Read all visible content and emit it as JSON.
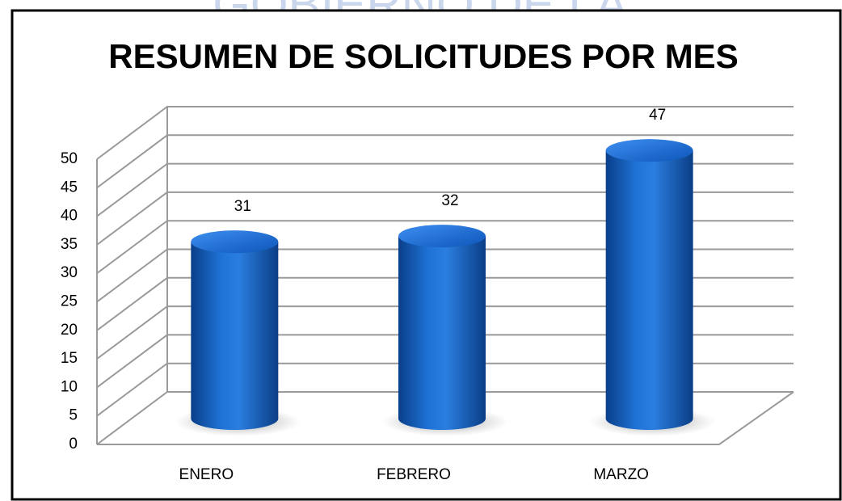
{
  "watermark": "GOBIERNO DE LA",
  "chart_data": {
    "type": "bar",
    "title": "RESUMEN DE SOLICITUDES POR MES",
    "categories": [
      "ENERO",
      "FEBRERO",
      "MARZO"
    ],
    "values": [
      31,
      32,
      47
    ],
    "color": "#1565c0",
    "ylim": [
      0,
      50
    ],
    "yticks": [
      0,
      5,
      10,
      15,
      20,
      25,
      30,
      35,
      40,
      45,
      50
    ],
    "grid": true
  }
}
